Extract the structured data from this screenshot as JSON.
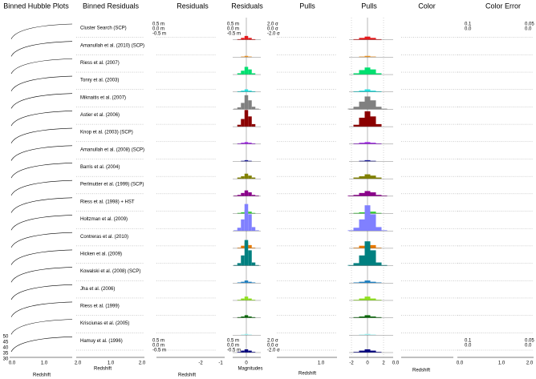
{
  "columns": [
    "Binned Hubble Plots",
    "Binned Residuals",
    "Residuals",
    "Residuals",
    "Pulls",
    "Pulls",
    "Color",
    "Color Error"
  ],
  "residual_bins": [
    -1.05,
    -0.75,
    -0.45,
    -0.15,
    0.15,
    0.45,
    0.75,
    1.05
  ],
  "pull_bins": [
    -2.45,
    -1.75,
    -1.05,
    -0.35,
    0.35,
    1.05,
    1.75,
    2.45
  ],
  "surveys": [
    {
      "name": "Cluster Search (SCP)",
      "color": "#e41a1c",
      "residual_hist": [
        0,
        1,
        3,
        6,
        3,
        1,
        0
      ],
      "pull_hist": [
        0,
        1,
        3,
        5,
        3,
        1,
        0
      ]
    },
    {
      "name": "Amanullah et al. (2010) (SCP)",
      "color": "#e89020",
      "residual_hist": [
        0,
        0,
        1,
        2,
        1,
        0,
        0
      ],
      "pull_hist": [
        0,
        0,
        1,
        2,
        1,
        0,
        0
      ]
    },
    {
      "name": "Riess et al. (2007)",
      "color": "#00e070",
      "residual_hist": [
        0,
        2,
        6,
        12,
        8,
        2,
        0
      ],
      "pull_hist": [
        0,
        2,
        7,
        11,
        8,
        2,
        0
      ]
    },
    {
      "name": "Tonry et al. (2003)",
      "color": "#20e0e0",
      "residual_hist": [
        0,
        1,
        2,
        4,
        2,
        1,
        0
      ],
      "pull_hist": [
        0,
        1,
        2,
        4,
        2,
        1,
        0
      ]
    },
    {
      "name": "Miknaitis et al. (2007)",
      "color": "#808080",
      "residual_hist": [
        1,
        3,
        10,
        22,
        14,
        4,
        1
      ],
      "pull_hist": [
        1,
        4,
        12,
        20,
        14,
        4,
        1
      ]
    },
    {
      "name": "Astier et al. (2006)",
      "color": "#8b0000",
      "residual_hist": [
        0,
        3,
        12,
        26,
        16,
        4,
        0
      ],
      "pull_hist": [
        0,
        3,
        14,
        24,
        16,
        4,
        0
      ]
    },
    {
      "name": "Knop et al. (2003) (SCP)",
      "color": "#9a20e0",
      "residual_hist": [
        0,
        1,
        2,
        3,
        2,
        1,
        0
      ],
      "pull_hist": [
        0,
        1,
        2,
        3,
        2,
        1,
        0
      ]
    },
    {
      "name": "Amanullah et al. (2008) (SCP)",
      "color": "#1a1a9a",
      "residual_hist": [
        0,
        0,
        1,
        2,
        1,
        0,
        0
      ],
      "pull_hist": [
        0,
        0,
        1,
        2,
        1,
        0,
        0
      ]
    },
    {
      "name": "Barris et al. (2004)",
      "color": "#808000",
      "residual_hist": [
        0,
        2,
        4,
        8,
        5,
        2,
        0
      ],
      "pull_hist": [
        0,
        2,
        4,
        7,
        5,
        2,
        0
      ]
    },
    {
      "name": "Perlmutter et al. (1999) (SCP)",
      "color": "#8b008b",
      "residual_hist": [
        1,
        2,
        5,
        9,
        6,
        2,
        1
      ],
      "pull_hist": [
        1,
        2,
        5,
        8,
        6,
        2,
        1
      ]
    },
    {
      "name": "Riess et al. (1998) + HST",
      "color": "#32cd32",
      "residual_hist": [
        0,
        1,
        2,
        5,
        3,
        1,
        0
      ],
      "pull_hist": [
        0,
        1,
        2,
        5,
        3,
        1,
        0
      ]
    },
    {
      "name": "Holtzman et al. (2009)",
      "color": "#8080ff",
      "residual_hist": [
        1,
        5,
        18,
        42,
        26,
        6,
        1
      ],
      "pull_hist": [
        1,
        5,
        18,
        40,
        26,
        6,
        1
      ]
    },
    {
      "name": "Contreras et al. (2010)",
      "color": "#e87800",
      "residual_hist": [
        0,
        1,
        4,
        9,
        5,
        1,
        0
      ],
      "pull_hist": [
        0,
        1,
        4,
        8,
        5,
        1,
        0
      ]
    },
    {
      "name": "Hicken et al. (2009)",
      "color": "#008080",
      "residual_hist": [
        1,
        4,
        16,
        40,
        24,
        5,
        1
      ],
      "pull_hist": [
        1,
        4,
        16,
        38,
        24,
        5,
        1
      ]
    },
    {
      "name": "Kowalski et al. (2008) (SCP)",
      "color": "#2080c0",
      "residual_hist": [
        0,
        1,
        2,
        4,
        2,
        1,
        0
      ],
      "pull_hist": [
        0,
        1,
        2,
        4,
        2,
        1,
        0
      ]
    },
    {
      "name": "Jha et al. (2006)",
      "color": "#90e020",
      "residual_hist": [
        0,
        1,
        3,
        6,
        3,
        1,
        0
      ],
      "pull_hist": [
        0,
        1,
        3,
        6,
        3,
        1,
        0
      ]
    },
    {
      "name": "Riess et al. (1999)",
      "color": "#006400",
      "residual_hist": [
        0,
        1,
        2,
        4,
        2,
        1,
        0
      ],
      "pull_hist": [
        0,
        1,
        2,
        4,
        2,
        1,
        0
      ]
    },
    {
      "name": "Krisciunas et al. (2005)",
      "color": "#a0f0f0",
      "residual_hist": [
        0,
        0,
        1,
        2,
        1,
        0,
        0
      ],
      "pull_hist": [
        0,
        0,
        1,
        2,
        1,
        0,
        0
      ]
    },
    {
      "name": "Hamuy et al. (1996)",
      "color": "#000080",
      "residual_hist": [
        0,
        1,
        3,
        5,
        3,
        1,
        0
      ],
      "pull_hist": [
        0,
        1,
        3,
        5,
        3,
        1,
        0
      ]
    }
  ],
  "axes": {
    "redshift_label": "Redshift",
    "magnitudes_label": "Magnitudes",
    "hubble_x_ticks": [
      "0.0",
      "1.0",
      "2.0"
    ],
    "hubble_y_ticks": [
      "50",
      "45",
      "40",
      "35",
      "30"
    ],
    "residual_x_ticks": [
      "-2",
      "-1",
      "0"
    ],
    "pull_x_ticks": [
      "-2",
      "0",
      "2"
    ],
    "m_labels": [
      "0.5 m",
      "0.0 m",
      "-0.5 m"
    ],
    "sigma_labels": [
      "2.0 σ",
      "0.0 σ",
      "-2.0 σ"
    ],
    "color_labels": [
      "0.1",
      "0.0"
    ],
    "color_error_labels": [
      "0.05",
      "0.0"
    ]
  }
}
